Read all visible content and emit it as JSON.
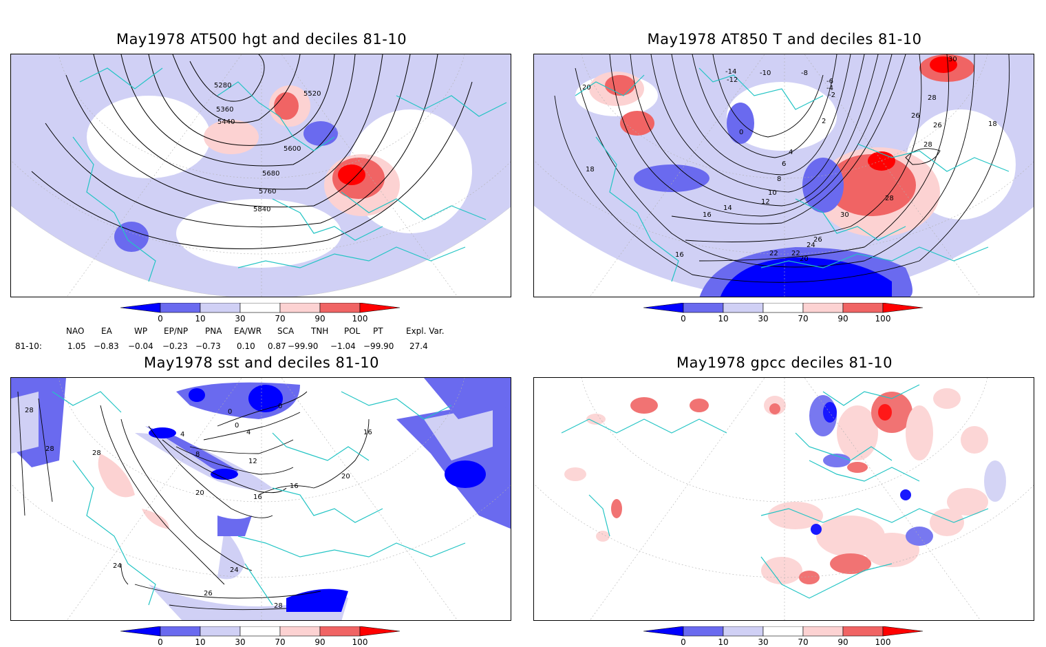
{
  "panels": [
    {
      "title": "May1978 AT500 hgt and deciles 81-10",
      "contour_labels": [
        "5280",
        "5360",
        "5440",
        "5520",
        "5600",
        "5680",
        "5760",
        "5840"
      ]
    },
    {
      "title": "May1978 AT850 T and deciles 81-10",
      "contour_labels": [
        "-14",
        "-12",
        "-10",
        "-8",
        "-6",
        "-4",
        "-2",
        "0",
        "2",
        "4",
        "6",
        "8",
        "10",
        "12",
        "14",
        "16",
        "16",
        "18",
        "18",
        "20",
        "20",
        "22",
        "22",
        "24",
        "26",
        "26",
        "26",
        "28",
        "28",
        "28",
        "30",
        "30"
      ]
    },
    {
      "title": "May1978 sst and deciles 81-10",
      "contour_labels": [
        "0",
        "0",
        "0",
        "4",
        "4",
        "8",
        "12",
        "16",
        "16",
        "16",
        "20",
        "20",
        "24",
        "24",
        "26",
        "28",
        "28",
        "28",
        "28"
      ]
    },
    {
      "title": "May1978 gpcc deciles 81-10",
      "contour_labels": []
    }
  ],
  "colorbar": {
    "labels": [
      "0",
      "10",
      "30",
      "70",
      "90",
      "100"
    ],
    "colors": [
      "#0000ff",
      "#6a6aef",
      "#d0d0f5",
      "#ffffff",
      "#fcd2d2",
      "#f06464",
      "#ff0000"
    ]
  },
  "indices": {
    "row_label": "81-10:",
    "names": [
      "NAO",
      "EA",
      "WP",
      "EP/NP",
      "PNA",
      "EA/WR",
      "SCA",
      "TNH",
      "POL",
      "PT",
      "Expl. Var."
    ],
    "values": [
      "1.05",
      "−0.83",
      "−0.04",
      "−0.23",
      "−0.73",
      "0.10",
      "0.87",
      "−99.90",
      "−1.04",
      "−99.90",
      "27.4"
    ]
  },
  "map_colors": {
    "coast": "#22c4c4",
    "grid": "#b0b0b0"
  }
}
